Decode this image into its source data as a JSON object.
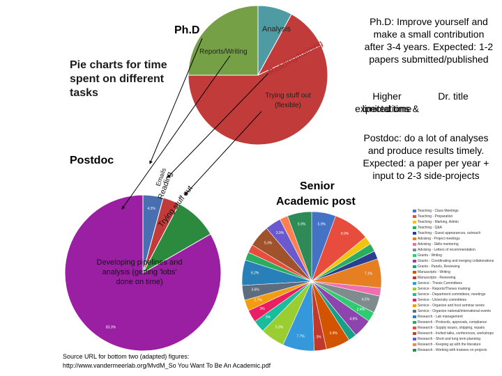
{
  "heading": "Pie charts for time spent on different tasks",
  "phd": {
    "label": "Ph.D",
    "expectation": "Ph.D: Improve yourself and make a small contribution after 3-4 years. Expected: 1-2 papers submitted/published",
    "higher_expectations": "Higher expectations &",
    "limited_time": "limited time",
    "dr_title": "Dr. title"
  },
  "postdoc": {
    "label": "Postdoc",
    "expectation": "Postdoc: do a lot of analyses and produce results timely. Expected: a paper per year + input to 2-3 side-projects"
  },
  "senior": {
    "label_line1": "Senior",
    "label_line2": "Academic post"
  },
  "source": {
    "line1": "Source URL for bottom two (adapted) figures:",
    "line2": "http://www.vandermeerlab.org/MvdM_So You Want To Be An Academic.pdf"
  },
  "chart_data": [
    {
      "type": "pie",
      "title": "Ph.D",
      "categories": [
        "Analysis",
        "Reading/training",
        "Trying stuff out (flexible)",
        "Reports/Writing"
      ],
      "values": [
        8,
        10,
        57,
        25
      ],
      "colors": [
        "#4e9ba3",
        "#c23b3b",
        "#c23b3b",
        "#76a046"
      ],
      "labels": [
        "Analysis",
        "Reading/training",
        "Trying stuff out (flexible)",
        "Reports/Writing"
      ]
    },
    {
      "type": "pie",
      "title": "Postdoc",
      "categories": [
        "Emails",
        "Reading",
        "Trying stuff out",
        "Developing pipelines and analysis (getting 'lobs' done on time)"
      ],
      "values": [
        4.2,
        3.5,
        9,
        83.3
      ],
      "colors": [
        "#4a6fb0",
        "#c23b3b",
        "#2b8a3e",
        "#9b1fa3"
      ],
      "labels": [
        "Emails",
        "Reading",
        "Trying stuff out",
        "Developing pipelines and analysis (getting 'lobs' done on time)"
      ],
      "value_labels": [
        "4.2%",
        "",
        "",
        "83.3%"
      ]
    },
    {
      "type": "pie",
      "title": "Senior Academic post",
      "categories": [
        "Teaching - Class Meetings",
        "Teaching - Preparation",
        "Teaching - Marking, Admin",
        "Teaching - Q&A",
        "Teaching - Guest appearances, outreach",
        "Advising - Project meetings",
        "Advising - Skills mentoring",
        "Advising - Letters of recommendation",
        "Grants - Writing",
        "Grants - Coordinating and merging collaborations",
        "Grants - Panels, Reviewing",
        "Manuscripts - Writing",
        "Manuscripts - Reviewing",
        "Service - Thesis Committees",
        "Service - Reports/Theses marking",
        "Service - Department committees, meetings",
        "Service - University committees",
        "Service - Organize and host seminar series",
        "Service - Organize national/international events",
        "Research - Lab management",
        "Research - Protocols, approvals, compliance",
        "Research - Supply issues, shipping, repairs",
        "Research - Invited talks, conferences, workshops",
        "Research - Short and long term planning",
        "Research - Keeping up with the literature",
        "Research - Working with trainees on projects"
      ],
      "values": [
        5.9,
        8.9,
        2.0,
        2.0,
        2.0,
        7.1,
        2.0,
        4.2,
        2.4,
        4.6,
        2.0,
        5.9,
        3.0,
        7.7,
        5.9,
        3.0,
        3.0,
        2.7,
        3.6,
        6.2,
        2.0,
        2.0,
        5.3,
        3.9,
        2.0,
        5.9
      ],
      "colors": [
        "#4472c4",
        "#e84c3d",
        "#f1c40f",
        "#27ae60",
        "#2c3e91",
        "#e67e22",
        "#ec6fb0",
        "#7f8c8d",
        "#2ecc71",
        "#8e44ad",
        "#16a085",
        "#d35400",
        "#c0392b",
        "#3498db",
        "#9acd32",
        "#1abc9c",
        "#e91e63",
        "#f39c12",
        "#5d6d7e",
        "#2980b9",
        "#27ae60",
        "#e74c3c",
        "#a0522d",
        "#6a5acd",
        "#ff7f50",
        "#2e8b57"
      ],
      "value_labels": [
        "5.9%",
        "8.9%",
        "",
        "",
        "",
        "7.1%",
        "",
        "4.2%",
        "2.4%",
        "4.6%",
        "",
        "5.9%",
        "3%",
        "7.7%",
        "5.9%",
        "3%",
        "3%",
        "2.7%",
        "3.6%",
        "6.2%",
        "",
        "",
        "5.3%",
        "3.9%",
        "",
        "5.9%"
      ]
    }
  ]
}
